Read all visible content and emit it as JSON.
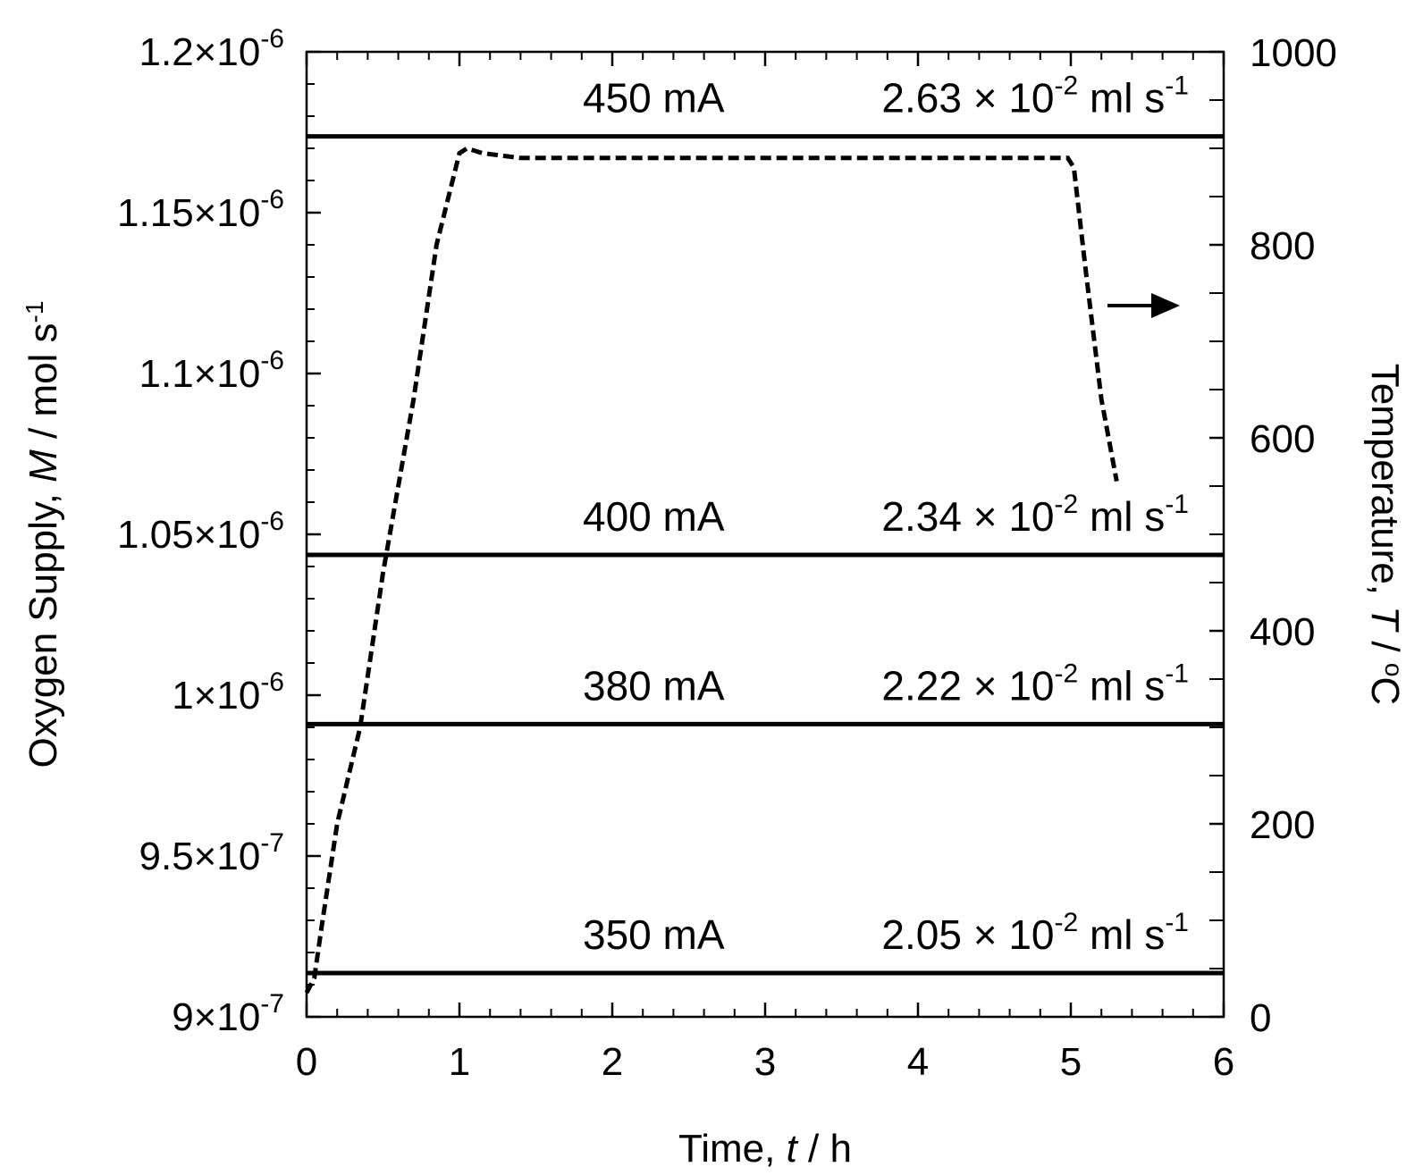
{
  "chart_data": {
    "type": "line",
    "x_axis": {
      "label_prefix": "Time, ",
      "label_var": "t",
      "label_unit": " / h",
      "range": [
        0,
        6
      ],
      "major_ticks": [
        0,
        1,
        2,
        3,
        4,
        5,
        6
      ],
      "tick_labels": [
        "0",
        "1",
        "2",
        "3",
        "4",
        "5",
        "6"
      ],
      "minor_step": 0.2
    },
    "y_left_axis": {
      "label_prefix": "Oxygen Supply, ",
      "label_var": "M",
      "label_unit": " / mol s",
      "label_unit_sup": "-1",
      "range": [
        9e-07,
        1.2e-06
      ],
      "major_ticks": [
        9e-07,
        9.5e-07,
        1e-06,
        1.05e-06,
        1.1e-06,
        1.15e-06,
        1.2e-06
      ],
      "tick_labels": [
        {
          "mantissa": "9×10",
          "exp": "-7"
        },
        {
          "mantissa": "9.5×10",
          "exp": "-7"
        },
        {
          "mantissa": "1×10",
          "exp": "-6"
        },
        {
          "mantissa": "1.05×10",
          "exp": "-6"
        },
        {
          "mantissa": "1.1×10",
          "exp": "-6"
        },
        {
          "mantissa": "1.15×10",
          "exp": "-6"
        },
        {
          "mantissa": "1.2×10",
          "exp": "-6"
        }
      ],
      "minor_step": 1e-08
    },
    "y_right_axis": {
      "label_prefix": "Temperature, ",
      "label_var": "T",
      "label_unit": " / ",
      "label_unit_sup": "o",
      "label_unit_tail": "C",
      "range": [
        0,
        1000
      ],
      "major_ticks": [
        0,
        200,
        400,
        600,
        800,
        1000
      ],
      "tick_labels": [
        "0",
        "200",
        "400",
        "600",
        "800",
        "1000"
      ],
      "minor_step": 50
    },
    "series": [
      {
        "type": "hline",
        "axis": "left",
        "value": 1.1737e-06,
        "current_label": "450 mA",
        "flow_mantissa": "2.63",
        "flow_times": "×",
        "flow_base": "10",
        "flow_exp": "-2",
        "flow_unit": "ml s",
        "flow_unit_exp": "-1"
      },
      {
        "type": "hline",
        "axis": "left",
        "value": 1.0436e-06,
        "current_label": "400 mA",
        "flow_mantissa": "2.34",
        "flow_times": "×",
        "flow_base": "10",
        "flow_exp": "-2",
        "flow_unit": "ml s",
        "flow_unit_exp": "-1"
      },
      {
        "type": "hline",
        "axis": "left",
        "value": 9.91e-07,
        "current_label": "380 mA",
        "flow_mantissa": "2.22",
        "flow_times": "×",
        "flow_base": "10",
        "flow_exp": "-2",
        "flow_unit": "ml s",
        "flow_unit_exp": "-1"
      },
      {
        "type": "hline",
        "axis": "left",
        "value": 9.136e-07,
        "current_label": "350 mA",
        "flow_mantissa": "2.05",
        "flow_times": "×",
        "flow_base": "10",
        "flow_exp": "-2",
        "flow_unit": "ml s",
        "flow_unit_exp": "-1"
      },
      {
        "type": "dashed-line",
        "axis": "right",
        "x": [
          0,
          0.05,
          0.1,
          0.2,
          0.35,
          0.5,
          0.7,
          0.85,
          1.0,
          1.05,
          1.15,
          1.4,
          2.0,
          2.5,
          3.0,
          3.5,
          4.0,
          4.5,
          4.98,
          5.02,
          5.1,
          5.2,
          5.3
        ],
        "y": [
          25,
          40,
          95,
          200,
          300,
          460,
          640,
          800,
          895,
          900,
          895,
          890,
          890,
          890,
          890,
          890,
          890,
          890,
          890,
          880,
          770,
          640,
          555
        ]
      }
    ],
    "annotations": [
      {
        "type": "arrow",
        "direction": "right",
        "text": "→",
        "points_to": "right axis"
      }
    ],
    "grid": false,
    "legend": "none"
  }
}
